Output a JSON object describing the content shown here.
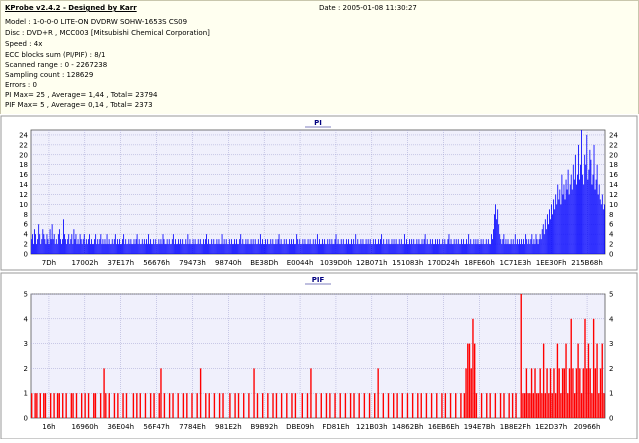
{
  "header": {
    "title": "KProbe v2.4.2 - Designed by Karr",
    "date": "Date : 2005-01-08 11:30:27",
    "lines": [
      "Model : 1-0-0-0 LITE-ON DVDRW SOHW-1653S CS09",
      "Disc : DVD+R , MCC003 [Mitsubishi Chemical Corporation]",
      "Speed : 4x",
      "ECC blocks sum (PI/PIF) : 8/1",
      "Scanned range : 0 - 2267238",
      "Sampling count : 128629",
      "Errors : 0",
      "PI Max= 25 , Average= 1,44 , Total= 23794",
      "PIF Max= 5 , Average= 0,14 , Total= 2373"
    ]
  },
  "colors": {
    "pi": "#0000ff",
    "pif": "#ff0000",
    "plot_bg": "#f0f0fc",
    "grid": "#a0a0d0"
  },
  "chart_data": [
    {
      "type": "bar",
      "title": "PI",
      "ylim": [
        0,
        25
      ],
      "yticks": [
        0,
        2,
        4,
        6,
        8,
        10,
        12,
        14,
        16,
        18,
        20,
        22,
        24
      ],
      "xticks": [
        "7Dh",
        "17002h",
        "37E17h",
        "56676h",
        "79473h",
        "98740h",
        "BE38Dh",
        "E0044h",
        "1039D0h",
        "12B071h",
        "151083h",
        "170D24h",
        "18FE60h",
        "1C71E3h",
        "1EE30Fh",
        "215B68h"
      ],
      "grid": true,
      "series": [
        {
          "values": [
            3,
            4,
            2,
            5,
            4,
            2,
            3,
            6,
            4,
            2,
            3,
            5,
            4,
            3,
            2,
            4,
            3,
            2,
            5,
            3,
            6,
            3,
            4,
            2,
            3,
            2,
            4,
            5,
            3,
            2,
            3,
            7,
            4,
            3,
            2,
            3,
            4,
            2,
            3,
            4,
            2,
            5,
            3,
            4,
            2,
            3,
            2,
            4,
            3,
            2,
            3,
            4,
            2,
            3,
            2,
            3,
            4,
            2,
            3,
            2,
            2,
            3,
            4,
            2,
            3,
            2,
            3,
            4,
            2,
            3,
            2,
            3,
            2,
            4,
            2,
            3,
            2,
            2,
            3,
            2,
            3,
            4,
            2,
            3,
            2,
            3,
            2,
            2,
            3,
            4,
            2,
            3,
            2,
            2,
            3,
            2,
            3,
            2,
            2,
            3,
            2,
            3,
            4,
            2,
            3,
            2,
            2,
            3,
            2,
            3,
            2,
            3,
            2,
            4,
            2,
            3,
            2,
            2,
            3,
            2,
            3,
            2,
            2,
            3,
            2,
            3,
            2,
            4,
            3,
            2,
            2,
            3,
            2,
            3,
            2,
            2,
            3,
            4,
            2,
            3,
            2,
            2,
            3,
            2,
            3,
            2,
            3,
            2,
            2,
            3,
            2,
            4,
            2,
            3,
            2,
            2,
            3,
            2,
            3,
            2,
            2,
            3,
            2,
            3,
            2,
            2,
            3,
            2,
            3,
            4,
            2,
            3,
            2,
            2,
            3,
            2,
            3,
            2,
            2,
            3,
            2,
            3,
            2,
            2,
            4,
            2,
            3,
            2,
            3,
            2,
            2,
            3,
            2,
            3,
            2,
            2,
            3,
            2,
            3,
            2,
            2,
            3,
            4,
            2,
            3,
            2,
            2,
            3,
            2,
            3,
            2,
            2,
            3,
            2,
            3,
            2,
            3,
            2,
            2,
            3,
            2,
            4,
            2,
            3,
            2,
            2,
            3,
            2,
            3,
            2,
            2,
            3,
            2,
            3,
            2,
            2,
            3,
            2,
            3,
            4,
            2,
            3,
            2,
            2,
            3,
            2,
            3,
            2,
            2,
            3,
            2,
            3,
            2,
            3,
            2,
            2,
            4,
            3,
            2,
            3,
            2,
            2,
            3,
            2,
            3,
            2,
            2,
            3,
            2,
            3,
            2,
            2,
            3,
            2,
            3,
            2,
            4,
            2,
            3,
            2,
            2,
            3,
            2,
            3,
            2,
            2,
            3,
            2,
            3,
            2,
            3,
            2,
            2,
            3,
            4,
            2,
            3,
            2,
            2,
            3,
            2,
            3,
            2,
            2,
            3,
            2,
            3,
            2,
            2,
            3,
            2,
            3,
            2,
            4,
            2,
            3,
            2,
            2,
            3,
            2,
            3,
            2,
            2,
            3,
            2,
            3,
            2,
            3,
            2,
            2,
            3,
            2,
            3,
            2,
            2,
            3,
            2,
            3,
            4,
            2,
            3,
            2,
            2,
            3,
            2,
            3,
            2,
            2,
            3,
            2,
            3,
            2,
            3,
            2,
            2,
            3,
            2,
            3,
            2,
            2,
            4,
            2,
            3,
            2,
            2,
            3,
            2,
            3,
            2,
            3,
            2,
            2,
            3,
            2,
            3,
            2,
            2,
            3,
            2,
            3,
            4,
            2,
            3,
            2,
            2,
            3,
            2,
            3,
            2,
            2,
            3,
            2,
            3,
            2,
            3,
            2,
            2,
            3,
            2,
            3,
            2,
            2,
            3,
            4,
            2,
            3,
            2,
            2,
            3,
            2,
            3,
            2,
            3,
            2,
            2,
            3,
            2,
            3,
            2,
            2,
            3,
            2,
            4,
            2,
            3,
            2,
            2,
            3,
            2,
            3,
            2,
            3,
            2,
            2,
            3,
            2,
            3,
            2,
            2,
            3,
            2,
            3,
            2,
            2,
            4,
            3,
            5,
            8,
            10,
            7,
            9,
            6,
            4,
            3,
            2,
            3,
            4,
            2,
            3,
            2,
            3,
            2,
            2,
            3,
            2,
            3,
            2,
            4,
            2,
            3,
            2,
            3,
            2,
            3,
            2,
            3,
            2,
            4,
            3,
            2,
            3,
            2,
            3,
            4,
            2,
            3,
            2,
            4,
            3,
            2,
            3,
            4,
            3,
            5,
            6,
            4,
            7,
            5,
            8,
            6,
            9,
            7,
            10,
            8,
            11,
            9,
            12,
            10,
            14,
            11,
            13,
            10,
            16,
            12,
            14,
            11,
            15,
            13,
            17,
            12,
            14,
            16,
            13,
            18,
            15,
            20,
            14,
            16,
            22,
            15,
            18,
            25,
            16,
            14,
            20,
            18,
            24,
            15,
            17,
            21,
            19,
            14,
            16,
            22,
            13,
            15,
            18,
            12,
            14,
            11,
            10,
            12,
            9,
            10
          ]
        }
      ]
    },
    {
      "type": "bar",
      "title": "PIF",
      "ylim": [
        0,
        5
      ],
      "yticks": [
        0,
        1,
        2,
        3,
        4,
        5
      ],
      "xticks": [
        "16h",
        "16960h",
        "36E04h",
        "56F47h",
        "7784Eh",
        "981E2h",
        "B9B92h",
        "DBE09h",
        "FD81Eh",
        "121B03h",
        "14862Bh",
        "16EB6Eh",
        "194E7Bh",
        "1B8E2Fh",
        "1E2D37h",
        "20966h"
      ],
      "grid": true,
      "series": [
        {
          "values": [
            1,
            0,
            1,
            1,
            0,
            1,
            0,
            1,
            1,
            0,
            0,
            1,
            0,
            1,
            0,
            1,
            1,
            0,
            1,
            0,
            1,
            0,
            0,
            1,
            1,
            0,
            1,
            0,
            0,
            1,
            0,
            1,
            0,
            1,
            0,
            0,
            1,
            1,
            0,
            0,
            1,
            0,
            2,
            1,
            0,
            1,
            0,
            0,
            1,
            0,
            1,
            0,
            0,
            1,
            0,
            1,
            0,
            0,
            0,
            1,
            0,
            1,
            0,
            1,
            0,
            0,
            1,
            0,
            0,
            1,
            0,
            1,
            0,
            0,
            1,
            2,
            0,
            1,
            0,
            0,
            1,
            0,
            1,
            0,
            0,
            1,
            0,
            0,
            1,
            0,
            1,
            0,
            0,
            1,
            0,
            0,
            1,
            0,
            2,
            0,
            0,
            1,
            0,
            1,
            0,
            0,
            1,
            0,
            0,
            1,
            0,
            1,
            0,
            0,
            0,
            1,
            0,
            0,
            1,
            0,
            1,
            0,
            0,
            1,
            0,
            0,
            1,
            0,
            0,
            2,
            0,
            1,
            0,
            0,
            1,
            0,
            0,
            1,
            0,
            0,
            1,
            0,
            1,
            0,
            0,
            1,
            0,
            0,
            1,
            0,
            0,
            1,
            0,
            1,
            0,
            0,
            0,
            1,
            0,
            0,
            1,
            0,
            2,
            0,
            0,
            1,
            0,
            0,
            1,
            0,
            0,
            1,
            0,
            1,
            0,
            0,
            1,
            0,
            0,
            1,
            0,
            0,
            1,
            0,
            0,
            1,
            0,
            1,
            0,
            0,
            1,
            0,
            0,
            1,
            0,
            0,
            1,
            0,
            0,
            1,
            0,
            2,
            0,
            0,
            1,
            0,
            0,
            1,
            0,
            0,
            1,
            0,
            1,
            0,
            0,
            1,
            0,
            0,
            1,
            0,
            0,
            1,
            0,
            0,
            1,
            0,
            1,
            0,
            0,
            1,
            0,
            0,
            1,
            0,
            0,
            1,
            0,
            0,
            1,
            0,
            1,
            0,
            0,
            1,
            0,
            0,
            1,
            0,
            0,
            1,
            0,
            1,
            2,
            3,
            3,
            2,
            4,
            3,
            1,
            0,
            0,
            1,
            0,
            0,
            1,
            0,
            1,
            0,
            0,
            1,
            0,
            0,
            1,
            0,
            1,
            0,
            0,
            1,
            0,
            1,
            0,
            1,
            0,
            0,
            5,
            1,
            1,
            2,
            1,
            1,
            2,
            1,
            2,
            1,
            1,
            2,
            1,
            3,
            1,
            2,
            1,
            2,
            1,
            2,
            1,
            3,
            2,
            1,
            2,
            2,
            3,
            1,
            2,
            4,
            2,
            1,
            2,
            3,
            2,
            1,
            2,
            4,
            2,
            3,
            2,
            1,
            4,
            2,
            3,
            1,
            2,
            3,
            1
          ]
        }
      ]
    }
  ]
}
